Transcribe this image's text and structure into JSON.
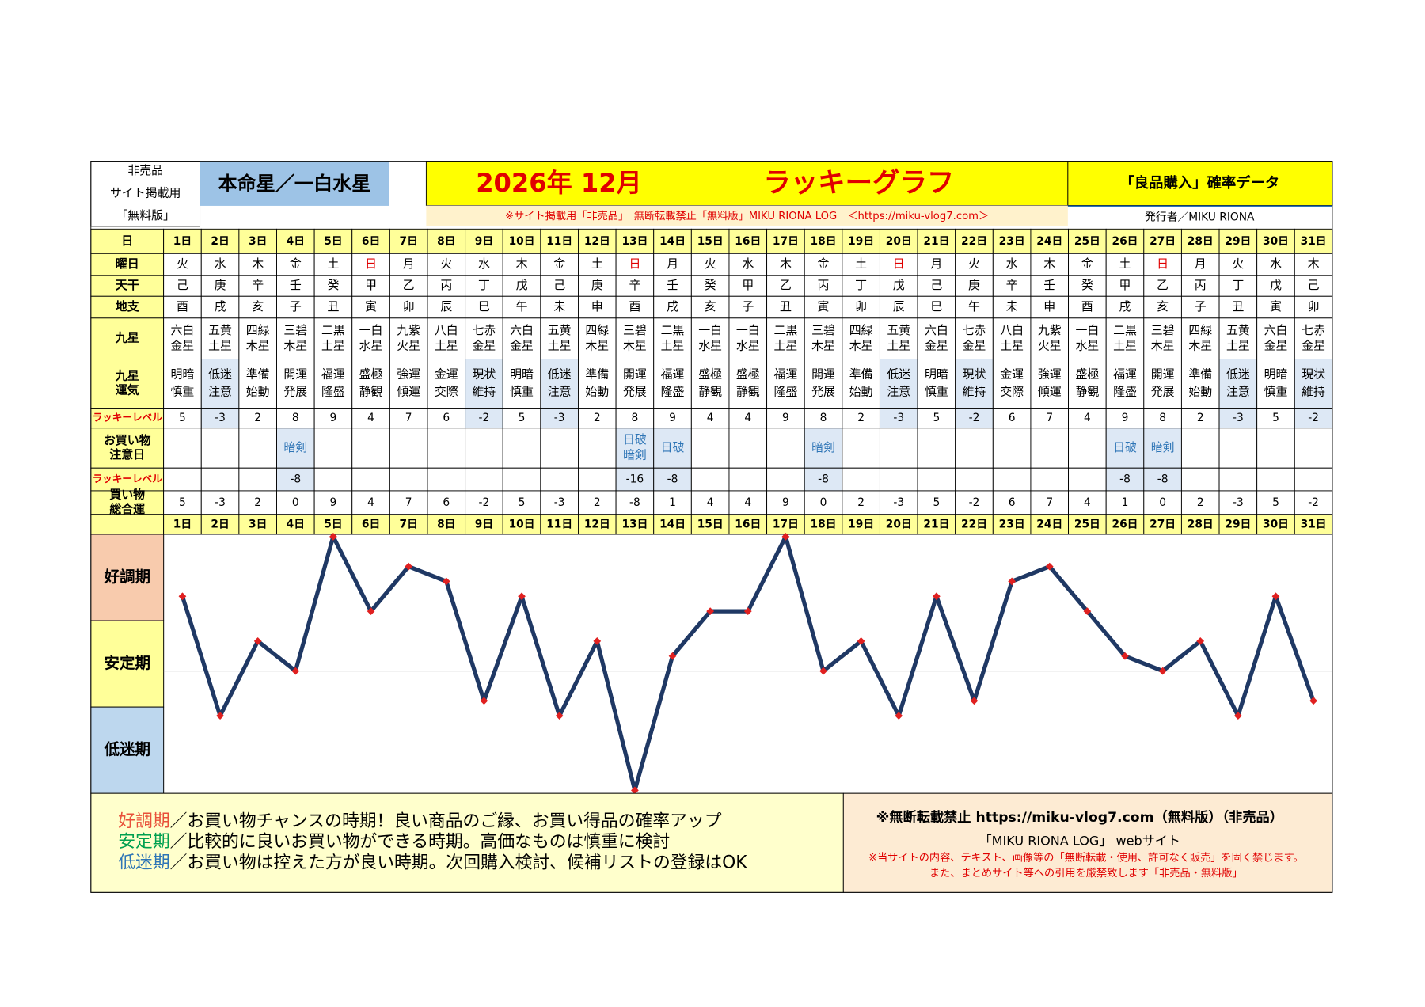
{
  "header": {
    "left": [
      "非売品",
      "サイト掲載用",
      "「無料版」"
    ],
    "honmei": "本命星／一白水星",
    "month": "2026年 12月",
    "title": "ラッキーグラフ",
    "subtitle": "「良品購入」確率データ",
    "notice": "※サイト掲載用「非売品」　無断転載禁止「無料版」MIKU RIONA LOG　＜https://miku-vlog7.com＞",
    "publisher": "発行者／MIKU RIONA"
  },
  "table": {
    "labels": [
      "日",
      "曜日",
      "天干",
      "地支",
      "九星",
      [
        "九星",
        "運気"
      ],
      "ラッキーレベル",
      [
        "お買い物",
        "注意日"
      ],
      "ラッキーレベル",
      [
        "買い物",
        "総合運"
      ]
    ],
    "days": [
      "1日",
      "2日",
      "3日",
      "4日",
      "5日",
      "6日",
      "7日",
      "8日",
      "9日",
      "10日",
      "11日",
      "12日",
      "13日",
      "14日",
      "15日",
      "16日",
      "17日",
      "18日",
      "19日",
      "20日",
      "21日",
      "22日",
      "23日",
      "24日",
      "25日",
      "26日",
      "27日",
      "28日",
      "29日",
      "30日",
      "31日"
    ],
    "weekdays": [
      "火",
      "水",
      "木",
      "金",
      "土",
      "日",
      "月",
      "火",
      "水",
      "木",
      "金",
      "土",
      "日",
      "月",
      "火",
      "水",
      "木",
      "金",
      "土",
      "日",
      "月",
      "火",
      "水",
      "木",
      "金",
      "土",
      "日",
      "月",
      "火",
      "水",
      "木"
    ],
    "tenkan": [
      "己",
      "庚",
      "辛",
      "壬",
      "癸",
      "甲",
      "乙",
      "丙",
      "丁",
      "戊",
      "己",
      "庚",
      "辛",
      "壬",
      "癸",
      "甲",
      "乙",
      "丙",
      "丁",
      "戊",
      "己",
      "庚",
      "辛",
      "壬",
      "癸",
      "甲",
      "乙",
      "丙",
      "丁",
      "戊",
      "己"
    ],
    "chishi": [
      "酉",
      "戌",
      "亥",
      "子",
      "丑",
      "寅",
      "卯",
      "辰",
      "巳",
      "午",
      "未",
      "申",
      "酉",
      "戌",
      "亥",
      "子",
      "丑",
      "寅",
      "卯",
      "辰",
      "巳",
      "午",
      "未",
      "申",
      "酉",
      "戌",
      "亥",
      "子",
      "丑",
      "寅",
      "卯"
    ],
    "kyusei": [
      [
        "六白",
        "金星"
      ],
      [
        "五黄",
        "土星"
      ],
      [
        "四緑",
        "木星"
      ],
      [
        "三碧",
        "木星"
      ],
      [
        "二黒",
        "土星"
      ],
      [
        "一白",
        "水星"
      ],
      [
        "九紫",
        "火星"
      ],
      [
        "八白",
        "土星"
      ],
      [
        "七赤",
        "金星"
      ],
      [
        "六白",
        "金星"
      ],
      [
        "五黄",
        "土星"
      ],
      [
        "四緑",
        "木星"
      ],
      [
        "三碧",
        "木星"
      ],
      [
        "二黒",
        "土星"
      ],
      [
        "一白",
        "水星"
      ],
      [
        "一白",
        "水星"
      ],
      [
        "二黒",
        "土星"
      ],
      [
        "三碧",
        "木星"
      ],
      [
        "四緑",
        "木星"
      ],
      [
        "五黄",
        "土星"
      ],
      [
        "六白",
        "金星"
      ],
      [
        "七赤",
        "金星"
      ],
      [
        "八白",
        "土星"
      ],
      [
        "九紫",
        "火星"
      ],
      [
        "一白",
        "水星"
      ],
      [
        "二黒",
        "土星"
      ],
      [
        "三碧",
        "木星"
      ],
      [
        "四緑",
        "木星"
      ],
      [
        "五黄",
        "土星"
      ],
      [
        "六白",
        "金星"
      ],
      [
        "七赤",
        "金星"
      ]
    ],
    "unki": [
      [
        "明暗",
        "慎重"
      ],
      [
        "低迷",
        "注意"
      ],
      [
        "準備",
        "始動"
      ],
      [
        "開運",
        "発展"
      ],
      [
        "福運",
        "隆盛"
      ],
      [
        "盛極",
        "静観"
      ],
      [
        "強運",
        "傾運"
      ],
      [
        "金運",
        "交際"
      ],
      [
        "現状",
        "維持"
      ],
      [
        "明暗",
        "慎重"
      ],
      [
        "低迷",
        "注意"
      ],
      [
        "準備",
        "始動"
      ],
      [
        "開運",
        "発展"
      ],
      [
        "福運",
        "隆盛"
      ],
      [
        "盛極",
        "静観"
      ],
      [
        "盛極",
        "静観"
      ],
      [
        "福運",
        "隆盛"
      ],
      [
        "開運",
        "発展"
      ],
      [
        "準備",
        "始動"
      ],
      [
        "低迷",
        "注意"
      ],
      [
        "明暗",
        "慎重"
      ],
      [
        "現状",
        "維持"
      ],
      [
        "金運",
        "交際"
      ],
      [
        "強運",
        "傾運"
      ],
      [
        "盛極",
        "静観"
      ],
      [
        "福運",
        "隆盛"
      ],
      [
        "開運",
        "発展"
      ],
      [
        "準備",
        "始動"
      ],
      [
        "低迷",
        "注意"
      ],
      [
        "明暗",
        "慎重"
      ],
      [
        "現状",
        "維持"
      ]
    ],
    "lucky": [
      5,
      -3,
      2,
      8,
      9,
      4,
      7,
      6,
      -2,
      5,
      -3,
      2,
      8,
      9,
      4,
      4,
      9,
      8,
      2,
      -3,
      5,
      -2,
      6,
      7,
      4,
      9,
      8,
      2,
      -3,
      5,
      -2
    ],
    "caution": [
      null,
      null,
      null,
      [
        "暗剣"
      ],
      null,
      null,
      null,
      null,
      null,
      null,
      null,
      null,
      [
        "日破",
        "暗剣"
      ],
      [
        "日破"
      ],
      null,
      null,
      null,
      [
        "暗剣"
      ],
      null,
      null,
      null,
      null,
      null,
      null,
      null,
      [
        "日破"
      ],
      [
        "暗剣"
      ],
      null,
      null,
      null,
      null
    ],
    "caution_level": [
      null,
      null,
      null,
      -8,
      null,
      null,
      null,
      null,
      null,
      null,
      null,
      null,
      -16,
      -8,
      null,
      null,
      null,
      -8,
      null,
      null,
      null,
      null,
      null,
      null,
      null,
      -8,
      -8,
      null,
      null,
      null,
      null
    ],
    "total": [
      5,
      -3,
      2,
      0,
      9,
      4,
      7,
      6,
      -2,
      5,
      -3,
      2,
      -8,
      1,
      4,
      4,
      9,
      0,
      2,
      -3,
      5,
      -2,
      6,
      7,
      4,
      1,
      0,
      2,
      -3,
      5,
      -2
    ]
  },
  "chart_data": {
    "type": "line",
    "color": "#1f3864",
    "marker_color": "#e02020",
    "ylim": [
      -8.2,
      9.15
    ],
    "bands": [
      "好調期",
      "安定期",
      "低迷期"
    ],
    "band_colors": [
      "#f8cbad",
      "#ffff99",
      "#bdd7ee"
    ]
  },
  "footer": {
    "lines": [
      {
        "term": "好調期",
        "text": "／お買い物チャンスの時期！良い商品のご縁、お買い得品の確率アップ",
        "color": "#e8503a"
      },
      {
        "term": "安定期",
        "text": "／比較的に良いお買い物ができる時期。高価なものは慎重に検討",
        "color": "#00a050"
      },
      {
        "term": "低迷期",
        "text": "／お買い物は控えた方が良い時期。次回購入検討、候補リストの登録はOK",
        "color": "#2e75b6"
      }
    ],
    "right": [
      "※無断転載禁止 https://miku-vlog7.com（無料版）（非売品）",
      "「MIKU RIONA LOG」 webサイト"
    ],
    "warning": [
      "※当サイトの内容、テキスト、画像等の「無断転載・使用、許可なく販売」を固く禁じます。",
      "また、まとめサイト等への引用を厳禁致します「非売品・無料版」"
    ]
  }
}
